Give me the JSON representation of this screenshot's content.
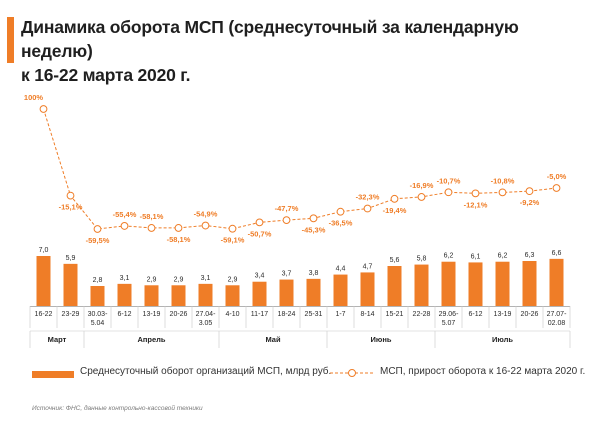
{
  "colors": {
    "accent": "#ef7d27",
    "text": "#1f1f1f",
    "grid": "#c8c8c8"
  },
  "title": {
    "line1": "Динамика оборота МСП (среднесуточный за календарную неделю)",
    "line2": "к 16-22 марта 2020 г."
  },
  "chart_data": {
    "type": "bar+line",
    "categories": [
      [
        "16-22"
      ],
      [
        "23-29"
      ],
      [
        "30.03-",
        "5.04"
      ],
      [
        "6-12"
      ],
      [
        "13-19"
      ],
      [
        "20-26"
      ],
      [
        "27.04-",
        "3.05"
      ],
      [
        "4-10"
      ],
      [
        "11-17"
      ],
      [
        "18-24"
      ],
      [
        "25-31"
      ],
      [
        "1-7"
      ],
      [
        "8-14"
      ],
      [
        "15-21"
      ],
      [
        "22-28"
      ],
      [
        "29.06-",
        "5.07"
      ],
      [
        "6-12"
      ],
      [
        "13-19"
      ],
      [
        "20-26"
      ],
      [
        "27.07-",
        "02.08"
      ]
    ],
    "months": [
      {
        "name": "Март",
        "from": 0,
        "to": 1
      },
      {
        "name": "Апрель",
        "from": 2,
        "to": 6
      },
      {
        "name": "Май",
        "from": 7,
        "to": 10
      },
      {
        "name": "Июнь",
        "from": 11,
        "to": 14
      },
      {
        "name": "Июль",
        "from": 15,
        "to": 19
      }
    ],
    "series": [
      {
        "name": "Среднесуточный оборот организаций МСП, млрд руб.",
        "type": "bar",
        "values": [
          7.0,
          5.9,
          2.8,
          3.1,
          2.9,
          2.9,
          3.1,
          2.9,
          3.4,
          3.7,
          3.8,
          4.4,
          4.7,
          5.6,
          5.8,
          6.2,
          6.1,
          6.2,
          6.3,
          6.6
        ],
        "labels": [
          "7,0",
          "5,9",
          "2,8",
          "3,1",
          "2,9",
          "2,9",
          "3,1",
          "2,9",
          "3,4",
          "3,7",
          "3,8",
          "4,4",
          "4,7",
          "5,6",
          "5,8",
          "6,2",
          "6,1",
          "6,2",
          "6,3",
          "6,6"
        ]
      },
      {
        "name": "МСП, прирост оборота к 16-22 марта 2020 г.",
        "type": "line",
        "values": [
          100,
          -15.1,
          -59.5,
          -55.4,
          -58.1,
          -58.1,
          -54.9,
          -59.1,
          -50.7,
          -47.7,
          -45.3,
          -36.5,
          -32.3,
          -19.4,
          -16.9,
          -10.7,
          -12.1,
          -10.8,
          -9.2,
          -5.0
        ],
        "labels": [
          "100%",
          "-15,1%",
          "-59,5%",
          "-55,4%",
          "-58,1%",
          "-58,1%",
          "-54,9%",
          "-59,1%",
          "-50,7%",
          "-47,7%",
          "-45,3%",
          "-36,5%",
          "-32,3%",
          "-19,4%",
          "-16,9%",
          "-10,7%",
          "-12,1%",
          "-10,8%",
          "-9,2%",
          "-5,0%"
        ],
        "label_position": [
          "above",
          "below",
          "below",
          "above",
          "above",
          "below",
          "above",
          "below",
          "below",
          "above",
          "below",
          "below",
          "above",
          "below",
          "above",
          "above",
          "below",
          "above",
          "below",
          "above"
        ]
      }
    ]
  },
  "legend": {
    "bar_label": "Среднесуточный оборот организаций МСП, млрд руб.",
    "line_label": "МСП, прирост оборота к 16-22 марта 2020 г."
  },
  "source": "Источник: ФНС, данные контрольно-кассовой техники"
}
